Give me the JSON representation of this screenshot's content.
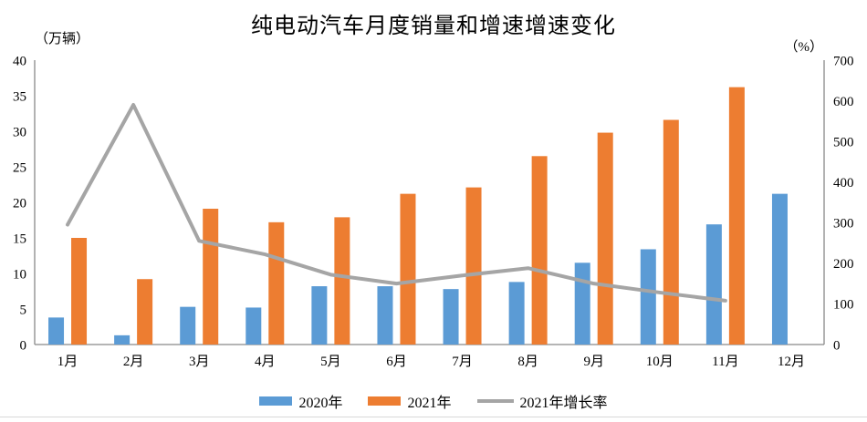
{
  "title": "纯电动汽车月度销量和增速增速变化",
  "left_axis": {
    "unit": "（万辆）",
    "min": 0,
    "max": 40,
    "ticks": [
      0,
      5,
      10,
      15,
      20,
      25,
      30,
      35,
      40
    ]
  },
  "right_axis": {
    "unit": "（%）",
    "min": 0,
    "max": 700,
    "ticks": [
      0,
      100,
      200,
      300,
      400,
      500,
      600,
      700
    ]
  },
  "colors": {
    "bar_2020": "#5B9BD5",
    "bar_2021": "#ED7D31",
    "growth_line": "#A5A5A5",
    "axis": "#898989",
    "divider": "#D9D9D9"
  },
  "chart_data": {
    "type": "combo",
    "grid": false,
    "legend_position": "bottom",
    "categories": [
      "1月",
      "2月",
      "3月",
      "4月",
      "5月",
      "6月",
      "7月",
      "8月",
      "9月",
      "10月",
      "11月",
      "12月"
    ],
    "series": [
      {
        "name": "2020年",
        "type": "bar",
        "axis": "left",
        "color": "#5B9BD5",
        "values": [
          3.8,
          1.3,
          5.3,
          5.2,
          8.2,
          8.2,
          7.8,
          8.8,
          11.5,
          13.4,
          16.9,
          21.2
        ]
      },
      {
        "name": "2021年",
        "type": "bar",
        "axis": "left",
        "color": "#ED7D31",
        "values": [
          15.0,
          9.2,
          19.1,
          17.2,
          17.9,
          21.2,
          22.1,
          26.5,
          29.8,
          31.6,
          36.2,
          null
        ]
      },
      {
        "name": "2021年增长率",
        "type": "line",
        "axis": "right",
        "color": "#A5A5A5",
        "values": [
          295,
          590,
          255,
          222,
          172,
          150,
          170,
          188,
          150,
          128,
          108,
          null
        ]
      }
    ],
    "left_ylim": [
      0,
      40
    ],
    "right_ylim": [
      0,
      700
    ],
    "left_ylabel": "（万辆）",
    "right_ylabel": "（%）"
  }
}
